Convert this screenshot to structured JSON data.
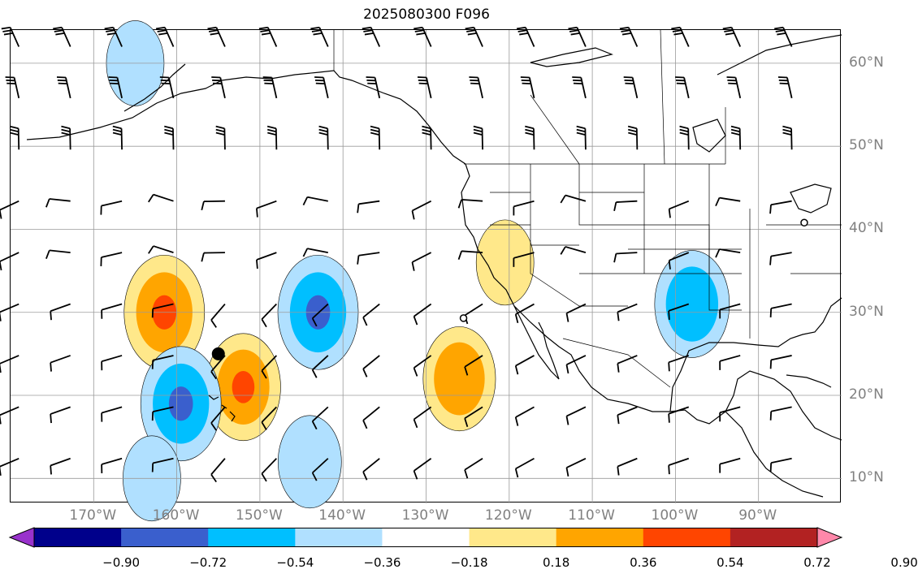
{
  "title": "2025080300 F096",
  "map": {
    "projection": "PlateCarree",
    "extent": {
      "lon": [
        -180,
        -80
      ],
      "lat": [
        7,
        64
      ]
    },
    "gridlines": true,
    "coastlines": true,
    "state_borders": true,
    "lon_labels": [
      "170°W",
      "160°W",
      "150°W",
      "140°W",
      "130°W",
      "120°W",
      "110°W",
      "100°W",
      "90°W"
    ],
    "lat_labels": [
      "60°N",
      "50°N",
      "40°N",
      "30°N",
      "20°N",
      "10°N"
    ],
    "lon_ticks": [
      -170,
      -160,
      -150,
      -140,
      -130,
      -120,
      -110,
      -100,
      -90
    ],
    "lat_ticks": [
      60,
      50,
      40,
      30,
      20,
      10
    ],
    "markers": [
      {
        "kind": "large-filled-dot",
        "lon": -155,
        "lat": 25
      },
      {
        "kind": "open-circle",
        "lon": -125.5,
        "lat": 29.3
      },
      {
        "kind": "open-circle",
        "lon": -84.5,
        "lat": 40.8
      }
    ],
    "shaded_features": [
      {
        "center": [
          -161.5,
          30
        ],
        "value": 0.45,
        "core": 0.62
      },
      {
        "center": [
          -152,
          21
        ],
        "value": 0.4,
        "core": 0.6
      },
      {
        "center": [
          -126,
          22
        ],
        "value": 0.38
      },
      {
        "center": [
          -120.5,
          36
        ],
        "value": 0.25
      },
      {
        "center": [
          -143,
          30
        ],
        "value": -0.45,
        "core": -0.65
      },
      {
        "center": [
          -159.5,
          19
        ],
        "value": -0.45,
        "core": -0.6
      },
      {
        "center": [
          -98,
          31
        ],
        "value": -0.4
      },
      {
        "center": [
          -163,
          10
        ],
        "value": -0.25
      },
      {
        "center": [
          -144,
          12
        ],
        "value": -0.3
      },
      {
        "center": [
          -165,
          60
        ],
        "value": -0.25
      }
    ]
  },
  "colorbar": {
    "ticks": [
      "−0.90",
      "−0.72",
      "−0.54",
      "−0.36",
      "−0.18",
      "0.18",
      "0.36",
      "0.54",
      "0.72",
      "0.90"
    ],
    "colors": [
      "#9932cc",
      "#00008b",
      "#3a5fcd",
      "#00bfff",
      "#b0e0ff",
      "#ffffff",
      "#ffe88a",
      "#ffa500",
      "#ff4500",
      "#b22222",
      "#ff88aa"
    ],
    "extend": "both"
  }
}
